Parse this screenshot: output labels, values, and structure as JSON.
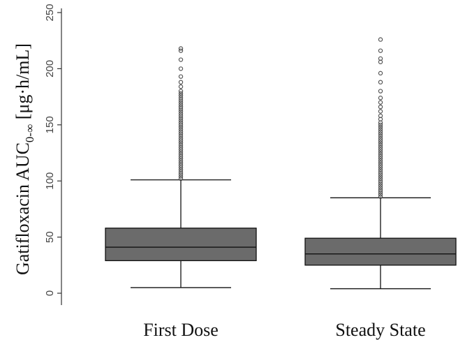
{
  "chart_data": {
    "type": "boxplot",
    "ylabel": {
      "main": "Gatifloxacin AUC",
      "subscript": "0-∞",
      "unit": " [μg·h/mL]"
    },
    "ylim": [
      0,
      250
    ],
    "yticks": [
      0,
      50,
      100,
      150,
      200,
      250
    ],
    "categories": [
      "First Dose",
      "Steady State"
    ],
    "series": [
      {
        "category": "First Dose",
        "min": 5,
        "q1": 29,
        "median": 41,
        "q3": 58,
        "whisker_high": 101,
        "outliers": [
          102,
          104,
          106,
          108,
          110,
          112,
          114,
          116,
          118,
          120,
          122,
          124,
          126,
          128,
          130,
          132,
          134,
          136,
          138,
          140,
          142,
          144,
          146,
          148,
          150,
          152,
          154,
          156,
          158,
          160,
          162,
          164,
          166,
          168,
          170,
          172,
          174,
          176,
          178,
          180,
          184,
          188,
          193,
          200,
          208,
          216,
          218
        ]
      },
      {
        "category": "Steady State",
        "min": 4,
        "q1": 25,
        "median": 35,
        "q3": 49,
        "whisker_high": 85,
        "outliers": [
          86,
          88,
          90,
          92,
          94,
          96,
          98,
          100,
          102,
          104,
          106,
          108,
          110,
          112,
          114,
          116,
          118,
          120,
          122,
          124,
          126,
          128,
          130,
          132,
          134,
          136,
          138,
          140,
          142,
          144,
          146,
          148,
          150,
          152,
          155,
          158,
          162,
          166,
          170,
          174,
          180,
          188,
          196,
          206,
          209,
          216,
          226
        ]
      }
    ],
    "colors": {
      "box_fill": "#6b6b6b",
      "lines": "#111111",
      "outlier_stroke": "#555555",
      "axis": "#333333"
    }
  }
}
